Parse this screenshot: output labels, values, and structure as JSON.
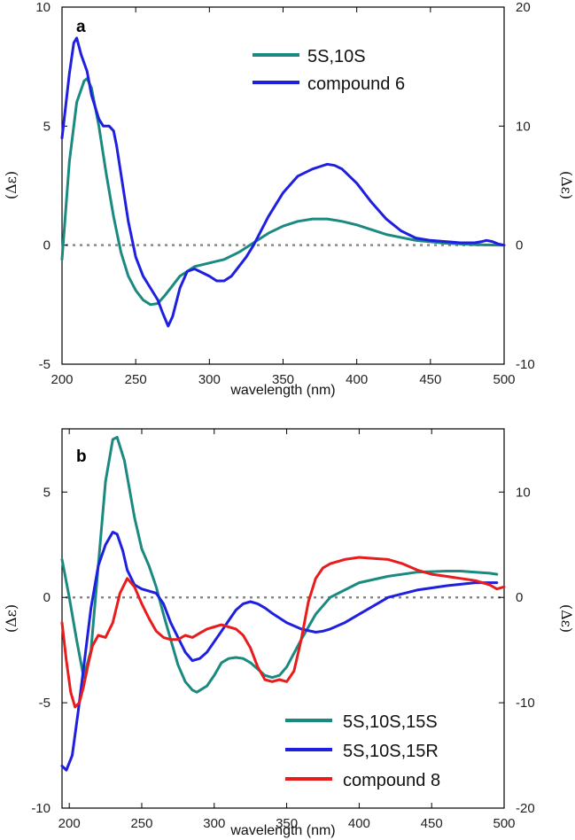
{
  "chart_data": [
    {
      "type": "line",
      "panel_label": "a",
      "xlabel": "wavelength (nm)",
      "ylabel_left": "(Δε)",
      "ylabel_right": "(Δε)",
      "xlim": [
        200,
        500
      ],
      "ylim_left": [
        -5,
        10
      ],
      "ylim_right": [
        -10,
        20
      ],
      "xticks": [
        200,
        250,
        300,
        350,
        400,
        450,
        500
      ],
      "yticks_left": [
        -5,
        0,
        5,
        10
      ],
      "yticks_right": [
        -10,
        0,
        10,
        20
      ],
      "baseline_dotted": 0,
      "legend_position": "top-right",
      "series": [
        {
          "name": "5S,10S",
          "color": "#1a8a80",
          "axis": "left",
          "x": [
            200,
            205,
            210,
            215,
            217,
            220,
            225,
            230,
            235,
            240,
            245,
            250,
            255,
            260,
            265,
            270,
            275,
            280,
            285,
            290,
            300,
            310,
            320,
            330,
            340,
            350,
            360,
            370,
            375,
            380,
            390,
            400,
            410,
            420,
            440,
            460,
            480,
            500
          ],
          "y": [
            -0.6,
            3.5,
            6.0,
            6.9,
            7.0,
            6.6,
            5.0,
            3.0,
            1.2,
            -0.3,
            -1.3,
            -1.9,
            -2.3,
            -2.5,
            -2.45,
            -2.1,
            -1.7,
            -1.3,
            -1.1,
            -0.9,
            -0.75,
            -0.6,
            -0.3,
            0.1,
            0.5,
            0.8,
            1.0,
            1.1,
            1.1,
            1.1,
            1.0,
            0.85,
            0.65,
            0.45,
            0.2,
            0.08,
            0.02,
            0.0
          ]
        },
        {
          "name": "compound 6",
          "color": "#1f1fe0",
          "axis": "left",
          "x": [
            200,
            205,
            208,
            210,
            213,
            217,
            220,
            225,
            228,
            232,
            235,
            237,
            240,
            245,
            250,
            255,
            260,
            265,
            268,
            272,
            275,
            280,
            285,
            290,
            300,
            305,
            310,
            315,
            320,
            325,
            330,
            340,
            350,
            360,
            370,
            375,
            380,
            385,
            390,
            400,
            410,
            420,
            430,
            440,
            450,
            460,
            470,
            480,
            485,
            488,
            492,
            496,
            500
          ],
          "y": [
            4.5,
            7.2,
            8.5,
            8.7,
            8.0,
            7.3,
            6.3,
            5.3,
            5.0,
            5.0,
            4.8,
            4.2,
            3.0,
            1.0,
            -0.5,
            -1.3,
            -1.8,
            -2.3,
            -2.8,
            -3.4,
            -3.0,
            -1.8,
            -1.1,
            -1.0,
            -1.3,
            -1.5,
            -1.5,
            -1.3,
            -0.9,
            -0.5,
            0.0,
            1.2,
            2.2,
            2.9,
            3.2,
            3.3,
            3.4,
            3.35,
            3.2,
            2.6,
            1.8,
            1.1,
            0.6,
            0.3,
            0.2,
            0.15,
            0.1,
            0.1,
            0.15,
            0.2,
            0.15,
            0.05,
            0.0
          ]
        }
      ]
    },
    {
      "type": "line",
      "panel_label": "b",
      "xlabel": "wavelength (nm)",
      "ylabel_left": "(Δε)",
      "ylabel_right": "(Δε)",
      "xlim": [
        195,
        500
      ],
      "ylim_left": [
        -10,
        8
      ],
      "ylim_right": [
        -20,
        16
      ],
      "xticks": [
        200,
        250,
        300,
        350,
        400,
        450,
        500
      ],
      "yticks_left": [
        -10,
        -5,
        0,
        5
      ],
      "yticks_right": [
        -20,
        -10,
        0,
        10
      ],
      "baseline_dotted": 0,
      "legend_position": "bottom-right",
      "series": [
        {
          "name": "5S,10S,15S",
          "color": "#1a8a80",
          "axis": "left",
          "x": [
            195,
            200,
            205,
            210,
            215,
            220,
            225,
            230,
            233,
            238,
            245,
            250,
            255,
            260,
            265,
            270,
            275,
            280,
            285,
            288,
            295,
            300,
            305,
            310,
            315,
            320,
            325,
            330,
            335,
            340,
            345,
            350,
            360,
            370,
            380,
            400,
            420,
            440,
            460,
            470,
            480,
            490,
            495
          ],
          "y": [
            1.8,
            0.0,
            -2.0,
            -3.8,
            -2.5,
            1.5,
            5.5,
            7.5,
            7.6,
            6.5,
            3.8,
            2.3,
            1.5,
            0.5,
            -0.8,
            -2.0,
            -3.2,
            -4.0,
            -4.4,
            -4.5,
            -4.2,
            -3.7,
            -3.1,
            -2.9,
            -2.85,
            -2.9,
            -3.1,
            -3.4,
            -3.7,
            -3.8,
            -3.7,
            -3.3,
            -2.0,
            -0.8,
            0.0,
            0.7,
            1.0,
            1.2,
            1.25,
            1.25,
            1.2,
            1.15,
            1.1
          ]
        },
        {
          "name": "5S,10S,15R",
          "color": "#1f1fe0",
          "axis": "left",
          "x": [
            195,
            198,
            202,
            206,
            210,
            215,
            220,
            225,
            230,
            233,
            237,
            240,
            245,
            250,
            255,
            260,
            265,
            270,
            280,
            285,
            290,
            295,
            300,
            305,
            310,
            315,
            320,
            325,
            330,
            335,
            340,
            350,
            360,
            370,
            375,
            380,
            390,
            400,
            410,
            420,
            440,
            460,
            480,
            495
          ],
          "y": [
            -8.0,
            -8.2,
            -7.5,
            -5.5,
            -3.3,
            -0.5,
            1.5,
            2.5,
            3.1,
            3.0,
            2.2,
            1.3,
            0.6,
            0.4,
            0.3,
            0.2,
            -0.3,
            -1.2,
            -2.6,
            -3.0,
            -2.9,
            -2.6,
            -2.1,
            -1.6,
            -1.1,
            -0.6,
            -0.3,
            -0.2,
            -0.3,
            -0.5,
            -0.75,
            -1.2,
            -1.5,
            -1.65,
            -1.6,
            -1.5,
            -1.2,
            -0.8,
            -0.4,
            0.0,
            0.35,
            0.55,
            0.7,
            0.7
          ]
        },
        {
          "name": "compound 8",
          "color": "#e81c1c",
          "axis": "left",
          "x": [
            195,
            198,
            201,
            204,
            207,
            210,
            213,
            216,
            220,
            225,
            230,
            235,
            240,
            245,
            250,
            255,
            260,
            265,
            270,
            275,
            280,
            285,
            290,
            295,
            300,
            305,
            310,
            315,
            320,
            325,
            330,
            335,
            340,
            345,
            350,
            355,
            360,
            365,
            370,
            375,
            380,
            390,
            400,
            410,
            420,
            430,
            440,
            450,
            460,
            470,
            480,
            490,
            495,
            500
          ],
          "y": [
            -1.2,
            -3.0,
            -4.5,
            -5.2,
            -5.0,
            -4.2,
            -3.2,
            -2.3,
            -1.8,
            -1.9,
            -1.2,
            0.2,
            0.9,
            0.5,
            -0.3,
            -1.0,
            -1.6,
            -1.9,
            -2.0,
            -2.0,
            -1.8,
            -1.9,
            -1.7,
            -1.5,
            -1.4,
            -1.3,
            -1.4,
            -1.5,
            -1.8,
            -2.4,
            -3.3,
            -3.9,
            -4.0,
            -3.9,
            -4.0,
            -3.5,
            -2.0,
            -0.2,
            0.9,
            1.4,
            1.6,
            1.8,
            1.9,
            1.85,
            1.8,
            1.6,
            1.3,
            1.1,
            1.0,
            0.9,
            0.8,
            0.6,
            0.4,
            0.5
          ]
        }
      ]
    }
  ]
}
